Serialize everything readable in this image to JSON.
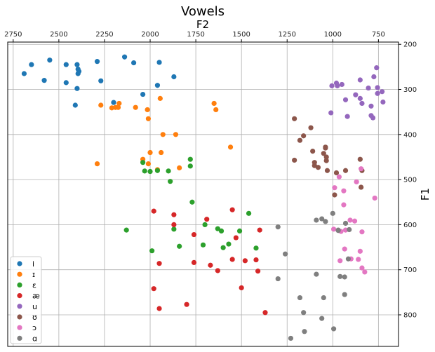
{
  "chart_data": {
    "type": "scatter",
    "title": "Vowels",
    "xlabel": "F2",
    "ylabel": "F1",
    "xlim": [
      2780,
      640
    ],
    "ylim": [
      870,
      195
    ],
    "x_ticks": [
      2750,
      2500,
      2250,
      2000,
      1750,
      1500,
      1250,
      1000,
      750
    ],
    "y_ticks": [
      200,
      300,
      400,
      500,
      600,
      700,
      800
    ],
    "grid": true,
    "legend_position": "lower-left",
    "series": [
      {
        "name": "i",
        "color": "#1f77b4",
        "points": [
          [
            2690,
            265
          ],
          [
            2650,
            245
          ],
          [
            2580,
            280
          ],
          [
            2550,
            235
          ],
          [
            2460,
            245
          ],
          [
            2460,
            285
          ],
          [
            2400,
            245
          ],
          [
            2395,
            255
          ],
          [
            2390,
            260
          ],
          [
            2395,
            265
          ],
          [
            2400,
            298
          ],
          [
            2410,
            335
          ],
          [
            2290,
            238
          ],
          [
            2270,
            281
          ],
          [
            2200,
            329
          ],
          [
            2140,
            228
          ],
          [
            2090,
            241
          ],
          [
            2040,
            311
          ],
          [
            1960,
            291
          ],
          [
            1950,
            240
          ],
          [
            1870,
            272
          ]
        ]
      },
      {
        "name": "ɪ",
        "color": "#ff7f0e",
        "points": [
          [
            2270,
            335
          ],
          [
            2210,
            341
          ],
          [
            2190,
            340
          ],
          [
            2175,
            340
          ],
          [
            2170,
            331
          ],
          [
            2080,
            340
          ],
          [
            2015,
            345
          ],
          [
            2010,
            365
          ],
          [
            1945,
            320
          ],
          [
            1930,
            400
          ],
          [
            1860,
            400
          ],
          [
            1650,
            331
          ],
          [
            1640,
            345
          ],
          [
            1560,
            428
          ],
          [
            2290,
            465
          ],
          [
            2040,
            455
          ],
          [
            2010,
            465
          ],
          [
            2000,
            440
          ],
          [
            1960,
            478
          ],
          [
            1940,
            440
          ],
          [
            1840,
            474
          ]
        ]
      },
      {
        "name": "ɛ",
        "color": "#2ca02c",
        "points": [
          [
            2040,
            462
          ],
          [
            2030,
            481
          ],
          [
            2000,
            482
          ],
          [
            1960,
            480
          ],
          [
            1900,
            481
          ],
          [
            1890,
            504
          ],
          [
            1780,
            455
          ],
          [
            1780,
            470
          ],
          [
            1770,
            550
          ],
          [
            1870,
            610
          ],
          [
            1840,
            648
          ],
          [
            1710,
            645
          ],
          [
            1700,
            600
          ],
          [
            1630,
            609
          ],
          [
            1610,
            614
          ],
          [
            1600,
            651
          ],
          [
            1570,
            643
          ],
          [
            1510,
            614
          ],
          [
            1460,
            575
          ],
          [
            1420,
            652
          ],
          [
            2130,
            612
          ],
          [
            1990,
            658
          ]
        ]
      },
      {
        "name": "æ",
        "color": "#d62728",
        "points": [
          [
            1980,
            570
          ],
          [
            1870,
            578
          ],
          [
            1870,
            600
          ],
          [
            1760,
            622
          ],
          [
            1690,
            588
          ],
          [
            1550,
            567
          ],
          [
            1530,
            629
          ],
          [
            1400,
            612
          ],
          [
            1980,
            742
          ],
          [
            1950,
            786
          ],
          [
            1950,
            686
          ],
          [
            1800,
            777
          ],
          [
            1760,
            684
          ],
          [
            1670,
            690
          ],
          [
            1630,
            702
          ],
          [
            1550,
            677
          ],
          [
            1480,
            680
          ],
          [
            1420,
            678
          ],
          [
            1410,
            703
          ],
          [
            1500,
            740
          ],
          [
            1370,
            795
          ]
        ]
      },
      {
        "name": "u",
        "color": "#9467bd",
        "points": [
          [
            1005,
            292
          ],
          [
            980,
            286
          ],
          [
            975,
            292
          ],
          [
            950,
            289
          ],
          [
            930,
            323
          ],
          [
            920,
            360
          ],
          [
            875,
            312
          ],
          [
            850,
            279
          ],
          [
            850,
            320
          ],
          [
            840,
            331
          ],
          [
            805,
            297
          ],
          [
            790,
            337
          ],
          [
            790,
            358
          ],
          [
            780,
            363
          ],
          [
            775,
            272
          ],
          [
            760,
            252
          ],
          [
            755,
            296
          ],
          [
            755,
            309
          ],
          [
            730,
            305
          ],
          [
            725,
            328
          ],
          [
            1010,
            352
          ]
        ]
      },
      {
        "name": "ʊ",
        "color": "#8c564b",
        "points": [
          [
            1210,
            365
          ],
          [
            1180,
            413
          ],
          [
            1160,
            403
          ],
          [
            1120,
            385
          ],
          [
            1110,
            437
          ],
          [
            1100,
            469
          ],
          [
            1100,
            462
          ],
          [
            1080,
            473
          ],
          [
            1050,
            442
          ],
          [
            1040,
            428
          ],
          [
            1040,
            430
          ],
          [
            1035,
            450
          ],
          [
            1035,
            458
          ],
          [
            1030,
            480
          ],
          [
            1210,
            457
          ],
          [
            990,
            534
          ],
          [
            930,
            480
          ],
          [
            850,
            455
          ],
          [
            845,
            517
          ],
          [
            840,
            480
          ],
          [
            980,
            485
          ]
        ]
      },
      {
        "name": "ɔ",
        "color": "#e377c2",
        "points": [
          [
            965,
            494
          ],
          [
            990,
            518
          ],
          [
            940,
            525
          ],
          [
            940,
            556
          ],
          [
            905,
            590
          ],
          [
            880,
            592
          ],
          [
            870,
            505
          ],
          [
            845,
            476
          ],
          [
            770,
            541
          ],
          [
            995,
            610
          ],
          [
            955,
            615
          ],
          [
            930,
            612
          ],
          [
            935,
            654
          ],
          [
            900,
            676
          ],
          [
            860,
            677
          ],
          [
            850,
            659
          ],
          [
            840,
            616
          ],
          [
            840,
            696
          ],
          [
            825,
            705
          ],
          [
            960,
            680
          ]
        ]
      },
      {
        "name": "ɑ",
        "color": "#7f7f7f",
        "points": [
          [
            1300,
            605
          ],
          [
            1260,
            665
          ],
          [
            1300,
            720
          ],
          [
            1230,
            852
          ],
          [
            1180,
            762
          ],
          [
            1160,
            795
          ],
          [
            1155,
            837
          ],
          [
            1090,
            590
          ],
          [
            1060,
            587
          ],
          [
            1040,
            593
          ],
          [
            1000,
            575
          ],
          [
            930,
            597
          ],
          [
            910,
            611
          ],
          [
            970,
            613
          ],
          [
            970,
            612
          ],
          [
            1090,
            710
          ],
          [
            960,
            715
          ],
          [
            935,
            716
          ],
          [
            935,
            755
          ],
          [
            915,
            676
          ],
          [
            1050,
            762
          ],
          [
            1060,
            808
          ],
          [
            995,
            831
          ]
        ]
      }
    ]
  }
}
